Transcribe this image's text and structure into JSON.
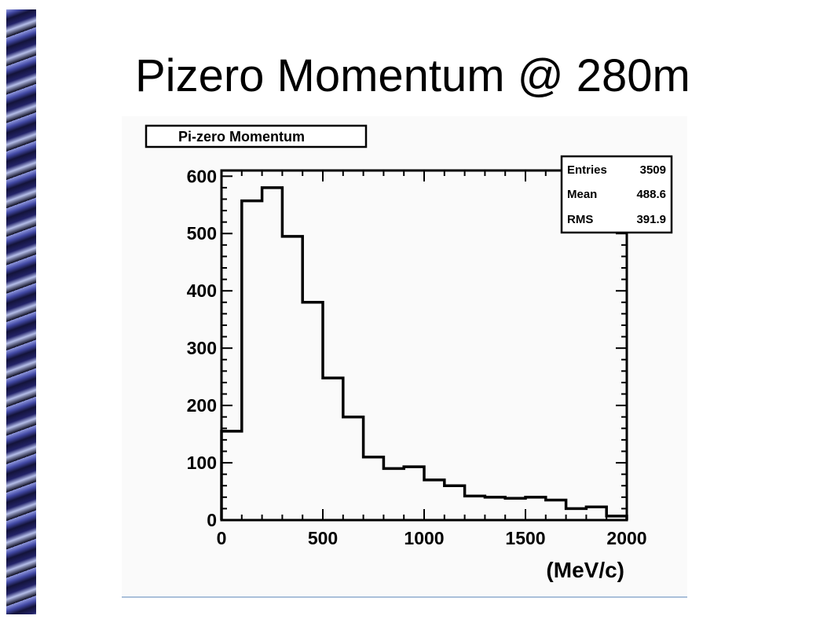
{
  "slide": {
    "title": "Pizero Momentum @ 280m"
  },
  "chart_data": {
    "type": "bar",
    "title": "Pi-zero Momentum",
    "xlabel": "(MeV/c)",
    "ylabel": "",
    "xlim": [
      0,
      2000
    ],
    "ylim": [
      0,
      610
    ],
    "x_ticks": [
      0,
      500,
      1000,
      1500,
      2000
    ],
    "y_ticks": [
      0,
      100,
      200,
      300,
      400,
      500,
      600
    ],
    "bin_edges": [
      0,
      100,
      200,
      300,
      400,
      500,
      600,
      700,
      800,
      900,
      1000,
      1100,
      1200,
      1300,
      1400,
      1500,
      1600,
      1700,
      1800,
      1900,
      2000
    ],
    "values": [
      155,
      557,
      580,
      495,
      380,
      248,
      180,
      110,
      90,
      93,
      70,
      60,
      42,
      40,
      38,
      40,
      35,
      20,
      23,
      7
    ],
    "grid": false,
    "legend": "none",
    "stats_box": {
      "position": "top-right",
      "rows": [
        {
          "label": "Entries",
          "value": "3509"
        },
        {
          "label": "Mean",
          "value": "488.6"
        },
        {
          "label": "RMS",
          "value": "391.9"
        }
      ]
    }
  }
}
